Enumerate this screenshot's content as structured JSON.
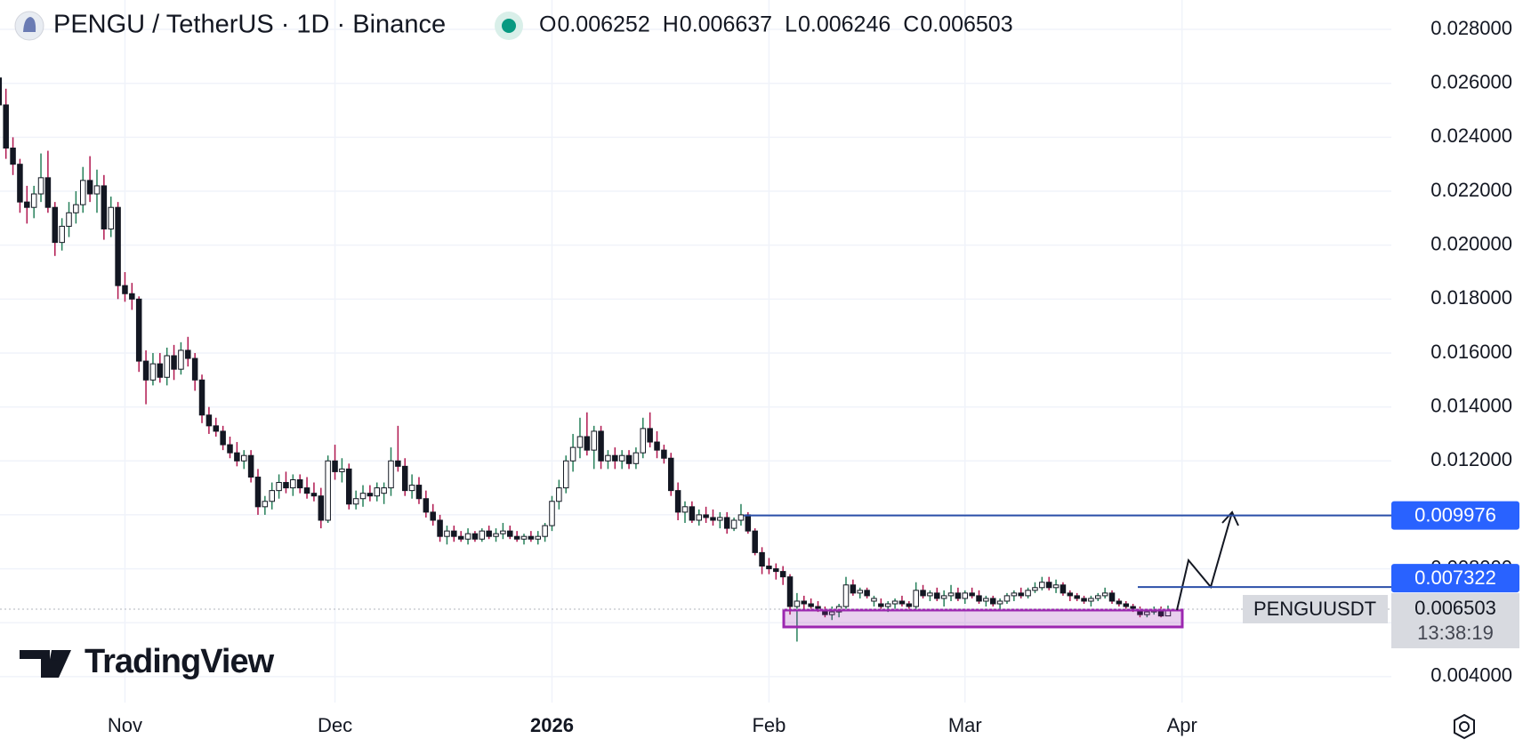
{
  "chart_data": {
    "type": "candlestick",
    "title": "PENGU / TetherUS · 1D · Binance",
    "ohlc_legend": [
      {
        "label": "O",
        "value": 0.006252
      },
      {
        "label": "H",
        "value": 0.006637
      },
      {
        "label": "L",
        "value": 0.006246
      },
      {
        "label": "C",
        "value": 0.006503
      }
    ],
    "symbol": "PENGUUSDT",
    "countdown": "13:38:19",
    "brand": "TradingView",
    "up_color": "#ffffff",
    "down_color": "#131722",
    "up_wick": "#26805a",
    "down_wick": "#b0174f",
    "grid": true,
    "xlim": [
      0.15,
      198.9
    ],
    "xticks": [
      {
        "value": 18,
        "label": "Nov"
      },
      {
        "value": 48,
        "label": "Dec"
      },
      {
        "value": 79,
        "label": "2026"
      },
      {
        "value": 110,
        "label": "Feb"
      },
      {
        "value": 138,
        "label": "Mar"
      },
      {
        "value": 169,
        "label": "Apr"
      }
    ],
    "ylim": [
      0.00304,
      0.02909
    ],
    "yticks": [
      {
        "value": 0.004,
        "label": "0.004000"
      },
      {
        "value": 0.006,
        "label": "0.006000"
      },
      {
        "value": 0.008,
        "label": "0.008000"
      },
      {
        "value": 0.01,
        "label": "0.010000"
      },
      {
        "value": 0.012,
        "label": "0.012000"
      },
      {
        "value": 0.014,
        "label": "0.014000"
      },
      {
        "value": 0.016,
        "label": "0.016000"
      },
      {
        "value": 0.018,
        "label": "0.018000"
      },
      {
        "value": 0.02,
        "label": "0.020000"
      },
      {
        "value": 0.022,
        "label": "0.022000"
      },
      {
        "value": 0.024,
        "label": "0.024000"
      },
      {
        "value": 0.026,
        "label": "0.026000"
      },
      {
        "value": 0.028,
        "label": "0.028000"
      }
    ],
    "price_lines": [
      {
        "value": 0.009976,
        "color": "#2962ff"
      },
      {
        "value": 0.007322,
        "color": "#2962ff"
      }
    ],
    "last_price": 0.006503,
    "candles": [
      [
        0.0262,
        0.0268,
        0.025,
        0.0252
      ],
      [
        0.0252,
        0.0258,
        0.0232,
        0.0236
      ],
      [
        0.0236,
        0.024,
        0.0226,
        0.023
      ],
      [
        0.023,
        0.0232,
        0.0212,
        0.0216
      ],
      [
        0.0216,
        0.0222,
        0.0208,
        0.0214
      ],
      [
        0.0214,
        0.0222,
        0.021,
        0.0219
      ],
      [
        0.0219,
        0.0234,
        0.0216,
        0.0225
      ],
      [
        0.0225,
        0.0235,
        0.0212,
        0.0214
      ],
      [
        0.0214,
        0.0216,
        0.0196,
        0.0201
      ],
      [
        0.0201,
        0.021,
        0.0198,
        0.0207
      ],
      [
        0.0207,
        0.0216,
        0.0203,
        0.0212
      ],
      [
        0.0212,
        0.022,
        0.0208,
        0.0215
      ],
      [
        0.0215,
        0.0229,
        0.0212,
        0.0224
      ],
      [
        0.0224,
        0.0233,
        0.0216,
        0.0219
      ],
      [
        0.0219,
        0.0228,
        0.0212,
        0.0222
      ],
      [
        0.0222,
        0.0226,
        0.0202,
        0.0206
      ],
      [
        0.0206,
        0.0218,
        0.0203,
        0.0214
      ],
      [
        0.0214,
        0.0216,
        0.018,
        0.0185
      ],
      [
        0.0185,
        0.019,
        0.0179,
        0.0182
      ],
      [
        0.0182,
        0.0186,
        0.0176,
        0.018
      ],
      [
        0.018,
        0.0181,
        0.0153,
        0.0157
      ],
      [
        0.0157,
        0.0161,
        0.0141,
        0.015
      ],
      [
        0.015,
        0.016,
        0.0148,
        0.0156
      ],
      [
        0.0156,
        0.016,
        0.0149,
        0.0151
      ],
      [
        0.0151,
        0.0162,
        0.0148,
        0.0159
      ],
      [
        0.0159,
        0.0163,
        0.015,
        0.0154
      ],
      [
        0.0154,
        0.0164,
        0.0152,
        0.0161
      ],
      [
        0.0161,
        0.0166,
        0.0155,
        0.0158
      ],
      [
        0.0158,
        0.016,
        0.0146,
        0.015
      ],
      [
        0.015,
        0.0152,
        0.0134,
        0.0137
      ],
      [
        0.0137,
        0.014,
        0.013,
        0.0133
      ],
      [
        0.0133,
        0.0136,
        0.0129,
        0.0131
      ],
      [
        0.0131,
        0.0133,
        0.0124,
        0.0126
      ],
      [
        0.0126,
        0.0129,
        0.0121,
        0.0123
      ],
      [
        0.0123,
        0.0127,
        0.0118,
        0.012
      ],
      [
        0.012,
        0.0124,
        0.0117,
        0.0122
      ],
      [
        0.0122,
        0.0124,
        0.0112,
        0.0114
      ],
      [
        0.0114,
        0.0117,
        0.01,
        0.0103
      ],
      [
        0.0103,
        0.0107,
        0.01,
        0.0105
      ],
      [
        0.0105,
        0.0112,
        0.0102,
        0.0109
      ],
      [
        0.0109,
        0.0115,
        0.0106,
        0.0112
      ],
      [
        0.0112,
        0.0116,
        0.0108,
        0.011
      ],
      [
        0.011,
        0.0115,
        0.0107,
        0.0113
      ],
      [
        0.0113,
        0.0115,
        0.0108,
        0.011
      ],
      [
        0.011,
        0.0114,
        0.0106,
        0.0108
      ],
      [
        0.0108,
        0.0112,
        0.0105,
        0.0107
      ],
      [
        0.0107,
        0.011,
        0.0095,
        0.0098
      ],
      [
        0.0098,
        0.0122,
        0.0097,
        0.012
      ],
      [
        0.012,
        0.0126,
        0.0113,
        0.0116
      ],
      [
        0.0116,
        0.0121,
        0.0112,
        0.0117
      ],
      [
        0.0117,
        0.0119,
        0.0102,
        0.0104
      ],
      [
        0.0104,
        0.0109,
        0.0102,
        0.0106
      ],
      [
        0.0106,
        0.0111,
        0.0103,
        0.0108
      ],
      [
        0.0108,
        0.0111,
        0.0105,
        0.0107
      ],
      [
        0.0107,
        0.0112,
        0.0105,
        0.011
      ],
      [
        0.0108,
        0.0112,
        0.0104,
        0.011
      ],
      [
        0.011,
        0.0125,
        0.0107,
        0.012
      ],
      [
        0.012,
        0.0133,
        0.0116,
        0.0118
      ],
      [
        0.0118,
        0.0121,
        0.0107,
        0.0109
      ],
      [
        0.0109,
        0.0115,
        0.0106,
        0.0111
      ],
      [
        0.0111,
        0.0114,
        0.0104,
        0.0106
      ],
      [
        0.0106,
        0.0109,
        0.0099,
        0.0101
      ],
      [
        0.0101,
        0.0104,
        0.0096,
        0.0098
      ],
      [
        0.0098,
        0.01,
        0.009,
        0.0092
      ],
      [
        0.0092,
        0.0096,
        0.0089,
        0.0094
      ],
      [
        0.0094,
        0.0096,
        0.009,
        0.0092
      ],
      [
        0.0092,
        0.0094,
        0.009,
        0.0091
      ],
      [
        0.0091,
        0.0095,
        0.0089,
        0.0093
      ],
      [
        0.0093,
        0.0094,
        0.009,
        0.0091
      ],
      [
        0.0091,
        0.0095,
        0.009,
        0.0094
      ],
      [
        0.0094,
        0.0096,
        0.0091,
        0.0092
      ],
      [
        0.0092,
        0.0095,
        0.009,
        0.0093
      ],
      [
        0.0093,
        0.0097,
        0.0091,
        0.0094
      ],
      [
        0.0094,
        0.0096,
        0.0091,
        0.0092
      ],
      [
        0.0092,
        0.0094,
        0.009,
        0.0091
      ],
      [
        0.0091,
        0.0093,
        0.0089,
        0.0092
      ],
      [
        0.0092,
        0.0094,
        0.009,
        0.0091
      ],
      [
        0.0091,
        0.0094,
        0.0089,
        0.0092
      ],
      [
        0.0092,
        0.0097,
        0.009,
        0.0096
      ],
      [
        0.0096,
        0.0107,
        0.0094,
        0.0105
      ],
      [
        0.0105,
        0.0113,
        0.0102,
        0.011
      ],
      [
        0.011,
        0.0122,
        0.0108,
        0.012
      ],
      [
        0.012,
        0.013,
        0.0116,
        0.0125
      ],
      [
        0.0125,
        0.0136,
        0.0121,
        0.0129
      ],
      [
        0.0129,
        0.0138,
        0.0122,
        0.0124
      ],
      [
        0.0124,
        0.0133,
        0.0117,
        0.0131
      ],
      [
        0.0131,
        0.0133,
        0.0117,
        0.012
      ],
      [
        0.012,
        0.0124,
        0.0117,
        0.0122
      ],
      [
        0.0122,
        0.0125,
        0.0117,
        0.012
      ],
      [
        0.012,
        0.0124,
        0.0117,
        0.0122
      ],
      [
        0.0122,
        0.0124,
        0.0117,
        0.0119
      ],
      [
        0.0119,
        0.0125,
        0.0117,
        0.0123
      ],
      [
        0.0123,
        0.0136,
        0.0121,
        0.0132
      ],
      [
        0.0132,
        0.0138,
        0.0125,
        0.0127
      ],
      [
        0.0127,
        0.0131,
        0.0121,
        0.0124
      ],
      [
        0.0124,
        0.0126,
        0.0119,
        0.0121
      ],
      [
        0.0121,
        0.0123,
        0.0107,
        0.0109
      ],
      [
        0.0109,
        0.0112,
        0.0098,
        0.0101
      ],
      [
        0.0101,
        0.0105,
        0.0097,
        0.0103
      ],
      [
        0.0103,
        0.0105,
        0.0097,
        0.0098
      ],
      [
        0.0098,
        0.0102,
        0.0096,
        0.01
      ],
      [
        0.01,
        0.0103,
        0.0097,
        0.0099
      ],
      [
        0.0099,
        0.0102,
        0.0096,
        0.0098
      ],
      [
        0.0098,
        0.0101,
        0.0095,
        0.0099
      ],
      [
        0.0099,
        0.0101,
        0.0093,
        0.0095
      ],
      [
        0.0095,
        0.0099,
        0.0094,
        0.0098
      ],
      [
        0.0098,
        0.0104,
        0.0096,
        0.01
      ],
      [
        0.01,
        0.0101,
        0.0093,
        0.0094
      ],
      [
        0.0094,
        0.0095,
        0.0085,
        0.0086
      ],
      [
        0.0086,
        0.0088,
        0.0078,
        0.0081
      ],
      [
        0.0081,
        0.0084,
        0.0078,
        0.008
      ],
      [
        0.008,
        0.0082,
        0.0076,
        0.0079
      ],
      [
        0.0079,
        0.0081,
        0.0074,
        0.0077
      ],
      [
        0.0077,
        0.0078,
        0.0063,
        0.0066
      ],
      [
        0.0066,
        0.0071,
        0.0053,
        0.0068
      ],
      [
        0.0068,
        0.007,
        0.0065,
        0.0067
      ],
      [
        0.0067,
        0.0069,
        0.0065,
        0.0066
      ],
      [
        0.0066,
        0.0068,
        0.0064,
        0.0065
      ],
      [
        0.0065,
        0.0066,
        0.0062,
        0.0063
      ],
      [
        0.0063,
        0.0066,
        0.0061,
        0.0064
      ],
      [
        0.0064,
        0.0067,
        0.0062,
        0.0066
      ],
      [
        0.0066,
        0.0077,
        0.0065,
        0.0074
      ],
      [
        0.0074,
        0.0076,
        0.007,
        0.0071
      ],
      [
        0.0071,
        0.0073,
        0.0069,
        0.0072
      ],
      [
        0.0072,
        0.0073,
        0.0069,
        0.007
      ],
      [
        0.0068,
        0.007,
        0.0066,
        0.0069
      ],
      [
        0.0067,
        0.0069,
        0.0065,
        0.0066
      ],
      [
        0.0066,
        0.0068,
        0.0064,
        0.0067
      ],
      [
        0.0067,
        0.0069,
        0.0065,
        0.0068
      ],
      [
        0.0068,
        0.007,
        0.0066,
        0.0067
      ],
      [
        0.0067,
        0.0068,
        0.0065,
        0.0066
      ],
      [
        0.0066,
        0.0075,
        0.0065,
        0.0072
      ],
      [
        0.0072,
        0.0074,
        0.0069,
        0.007
      ],
      [
        0.007,
        0.0072,
        0.0068,
        0.0071
      ],
      [
        0.0071,
        0.0073,
        0.0068,
        0.0069
      ],
      [
        0.0069,
        0.0072,
        0.0066,
        0.007
      ],
      [
        0.007,
        0.0074,
        0.0068,
        0.0071
      ],
      [
        0.0071,
        0.0073,
        0.0068,
        0.0069
      ],
      [
        0.0069,
        0.0072,
        0.0067,
        0.0071
      ],
      [
        0.0071,
        0.0073,
        0.0069,
        0.007
      ],
      [
        0.007,
        0.0072,
        0.0067,
        0.0068
      ],
      [
        0.0068,
        0.007,
        0.0066,
        0.0069
      ],
      [
        0.0069,
        0.007,
        0.0066,
        0.0067
      ],
      [
        0.0067,
        0.0069,
        0.0065,
        0.0068
      ],
      [
        0.0068,
        0.0071,
        0.0067,
        0.007
      ],
      [
        0.007,
        0.0072,
        0.0068,
        0.0071
      ],
      [
        0.0071,
        0.0073,
        0.0069,
        0.007
      ],
      [
        0.007,
        0.0073,
        0.0069,
        0.0072
      ],
      [
        0.0072,
        0.0075,
        0.0071,
        0.0073
      ],
      [
        0.0073,
        0.0077,
        0.0072,
        0.0075
      ],
      [
        0.0075,
        0.0077,
        0.0072,
        0.0073
      ],
      [
        0.0073,
        0.0076,
        0.0071,
        0.0074
      ],
      [
        0.0074,
        0.0075,
        0.007,
        0.0071
      ],
      [
        0.0071,
        0.0072,
        0.0068,
        0.007
      ],
      [
        0.007,
        0.0071,
        0.0068,
        0.0069
      ],
      [
        0.0069,
        0.007,
        0.0067,
        0.0068
      ],
      [
        0.0068,
        0.007,
        0.0066,
        0.0069
      ],
      [
        0.0069,
        0.0071,
        0.0068,
        0.007
      ],
      [
        0.007,
        0.0073,
        0.0069,
        0.0071
      ],
      [
        0.0071,
        0.0072,
        0.0067,
        0.0068
      ],
      [
        0.0068,
        0.0069,
        0.0066,
        0.0067
      ],
      [
        0.0067,
        0.0068,
        0.0065,
        0.0066
      ],
      [
        0.0066,
        0.0067,
        0.0064,
        0.0065
      ],
      [
        0.0065,
        0.0066,
        0.0062,
        0.0063
      ],
      [
        0.0063,
        0.0065,
        0.0062,
        0.0064
      ],
      [
        0.0064,
        0.0066,
        0.0063,
        0.0065
      ],
      [
        0.0065,
        0.0066,
        0.0062,
        0.00625
      ],
      [
        0.006252,
        0.006637,
        0.006246,
        0.006503
      ]
    ]
  }
}
